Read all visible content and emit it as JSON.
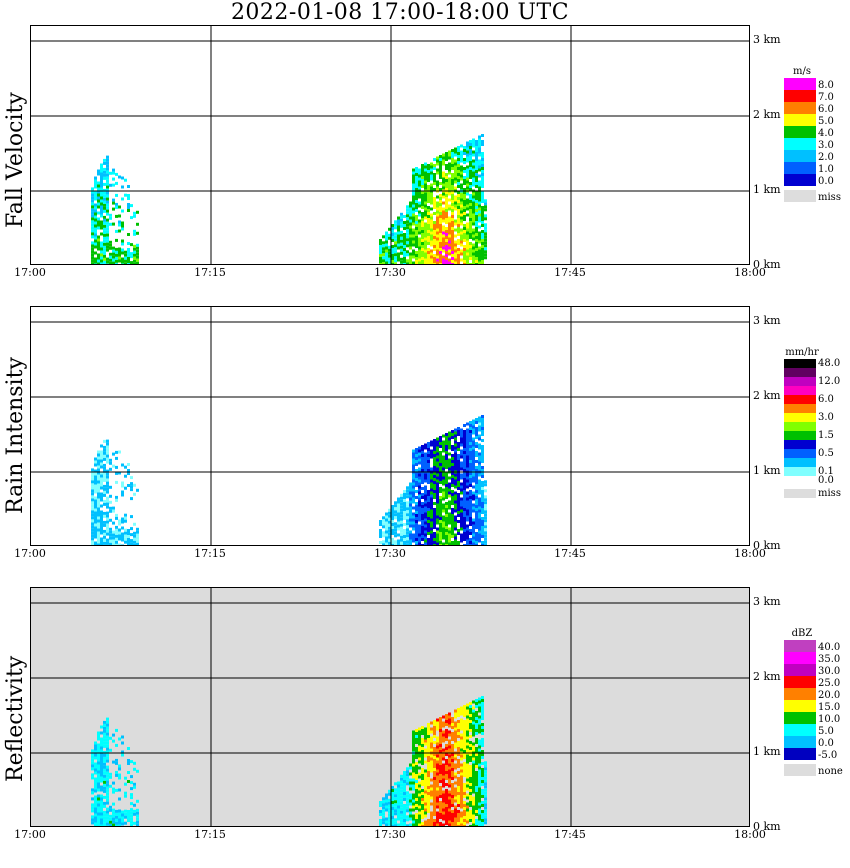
{
  "title": "2022-01-08   17:00-18:00 UTC",
  "x_ticks": [
    "17:00",
    "17:15",
    "17:30",
    "17:45",
    "18:00"
  ],
  "y_ticks": [
    "0 km",
    "1 km",
    "2 km",
    "3 km"
  ],
  "panels": [
    {
      "label": "Fall Velocity",
      "legend_title": "m/s",
      "background": "#ffffff",
      "legend": [
        {
          "label": "8.0",
          "color": "#ff00ff"
        },
        {
          "label": "7.0",
          "color": "#ff0000"
        },
        {
          "label": "6.0",
          "color": "#ff7f00"
        },
        {
          "label": "5.0",
          "color": "#ffff00"
        },
        {
          "label": "4.0",
          "color": "#00c000"
        },
        {
          "label": "3.0",
          "color": "#00ffff"
        },
        {
          "label": "2.0",
          "color": "#00c0ff"
        },
        {
          "label": "1.0",
          "color": "#0060ff"
        },
        {
          "label": "0.0",
          "color": "#0000d0"
        },
        {
          "label": "miss",
          "color": "#dddddd"
        }
      ]
    },
    {
      "label": "Rain Intensity",
      "legend_title": "mm/hr",
      "background": "#ffffff",
      "legend": [
        {
          "label": "48.0",
          "color": "#000000"
        },
        {
          "label": "",
          "color": "#600060"
        },
        {
          "label": "12.0",
          "color": "#c000c0"
        },
        {
          "label": "",
          "color": "#ff00c0"
        },
        {
          "label": "6.0",
          "color": "#ff0000"
        },
        {
          "label": "",
          "color": "#ff8000"
        },
        {
          "label": "3.0",
          "color": "#ffff00"
        },
        {
          "label": "",
          "color": "#80ff00"
        },
        {
          "label": "1.5",
          "color": "#00c000"
        },
        {
          "label": "",
          "color": "#0000d0"
        },
        {
          "label": "0.5",
          "color": "#0060ff"
        },
        {
          "label": "",
          "color": "#00c0ff"
        },
        {
          "label": "0.1",
          "color": "#80ffff"
        },
        {
          "label": "0.0",
          "color": "#ffffff"
        },
        {
          "label": "miss",
          "color": "#dddddd"
        }
      ]
    },
    {
      "label": "Reflectivity",
      "legend_title": "dBZ",
      "background": "#dcdcdc",
      "legend": [
        {
          "label": "40.0",
          "color": "#c040c0"
        },
        {
          "label": "35.0",
          "color": "#ff00ff"
        },
        {
          "label": "30.0",
          "color": "#c000c0"
        },
        {
          "label": "25.0",
          "color": "#ff0000"
        },
        {
          "label": "20.0",
          "color": "#ff8000"
        },
        {
          "label": "15.0",
          "color": "#ffff00"
        },
        {
          "label": "10.0",
          "color": "#00c000"
        },
        {
          "label": "5.0",
          "color": "#00ffff"
        },
        {
          "label": "0.0",
          "color": "#00c0ff"
        },
        {
          "label": "-5.0",
          "color": "#0000c0"
        },
        {
          "label": "none",
          "color": "#dddddd"
        }
      ]
    }
  ],
  "chart_data": {
    "type": "heatmap",
    "x_range": [
      "17:00",
      "18:00"
    ],
    "y_range_km": [
      0,
      3.2
    ],
    "x_gridlines": [
      "17:15",
      "17:30",
      "17:45"
    ],
    "y_gridlines_km": [
      1,
      2,
      3
    ],
    "echo_regions": [
      {
        "name": "echo-1",
        "start": "17:05",
        "end": "17:09",
        "top_km": 1.5
      },
      {
        "name": "echo-2",
        "start": "17:29",
        "end": "17:38",
        "top_km": 1.8
      }
    ]
  }
}
